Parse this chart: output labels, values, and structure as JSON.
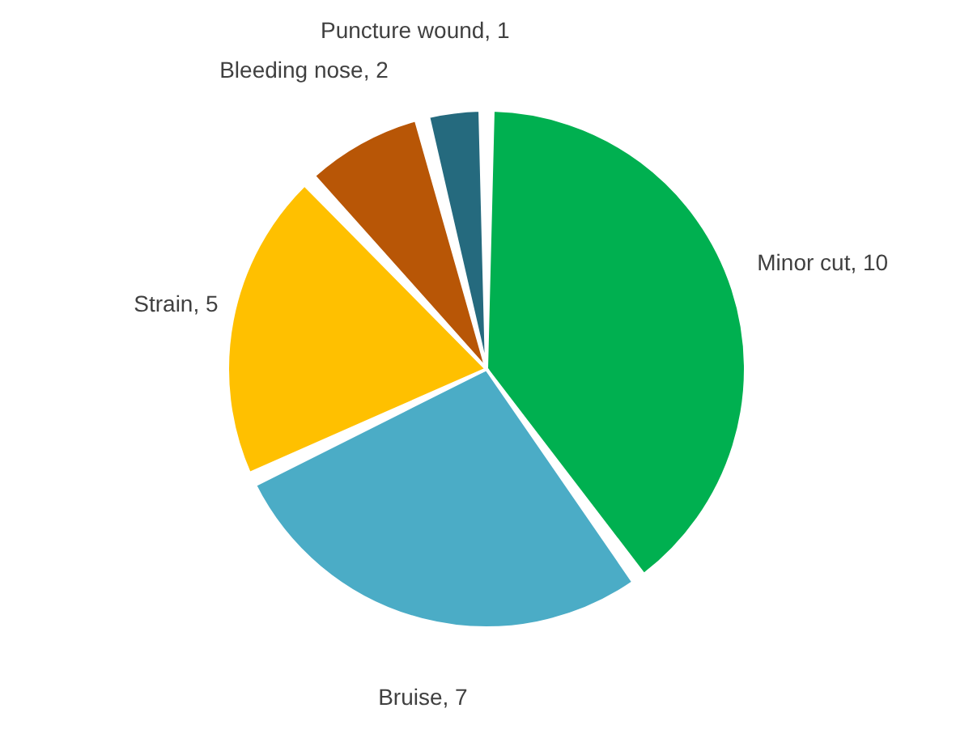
{
  "chart_data": {
    "type": "pie",
    "categories": [
      "Minor cut",
      "Bruise",
      "Strain",
      "Bleeding nose ",
      "Puncture wound "
    ],
    "values": [
      10,
      7,
      5,
      2,
      1
    ],
    "colors": [
      "#00b050",
      "#4bacc6",
      "#ffc000",
      "#b85606",
      "#256a7e"
    ],
    "value_labels": [
      ", 10",
      ", 7",
      ", 5",
      ", 2",
      ", 1"
    ]
  }
}
